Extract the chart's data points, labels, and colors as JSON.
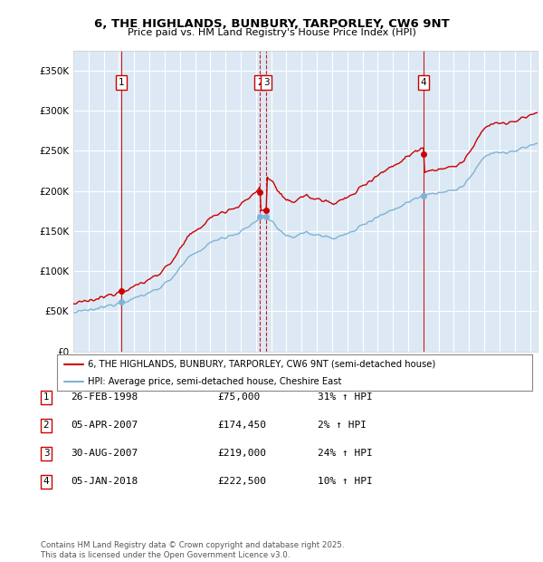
{
  "title": "6, THE HIGHLANDS, BUNBURY, TARPORLEY, CW6 9NT",
  "subtitle": "Price paid vs. HM Land Registry's House Price Index (HPI)",
  "ylim": [
    0,
    375000
  ],
  "yticks": [
    0,
    50000,
    100000,
    150000,
    200000,
    250000,
    300000,
    350000
  ],
  "ytick_labels": [
    "£0",
    "£50K",
    "£100K",
    "£150K",
    "£200K",
    "£250K",
    "£300K",
    "£350K"
  ],
  "xlim_start": 1995.0,
  "xlim_end": 2025.5,
  "background_color": "#dce9f5",
  "grid_color": "#ffffff",
  "sale_color": "#cc0000",
  "hpi_color": "#7fb3d3",
  "transactions": [
    {
      "num": 1,
      "date_str": "26-FEB-1998",
      "date_x": 1998.15,
      "price": 75000,
      "pct": "31%",
      "dir": "↑",
      "vline": "solid"
    },
    {
      "num": 2,
      "date_str": "05-APR-2007",
      "date_x": 2007.27,
      "price": 174450,
      "pct": "2%",
      "dir": "↑",
      "vline": "dashed"
    },
    {
      "num": 3,
      "date_str": "30-AUG-2007",
      "date_x": 2007.67,
      "price": 219000,
      "pct": "24%",
      "dir": "↑",
      "vline": "dashed"
    },
    {
      "num": 4,
      "date_str": "05-JAN-2018",
      "date_x": 2018.02,
      "price": 222500,
      "pct": "10%",
      "dir": "↑",
      "vline": "solid"
    }
  ],
  "legend_entries": [
    {
      "label": "6, THE HIGHLANDS, BUNBURY, TARPORLEY, CW6 9NT (semi-detached house)",
      "color": "#cc0000"
    },
    {
      "label": "HPI: Average price, semi-detached house, Cheshire East",
      "color": "#7fb3d3"
    }
  ],
  "footer": "Contains HM Land Registry data © Crown copyright and database right 2025.\nThis data is licensed under the Open Government Licence v3.0."
}
